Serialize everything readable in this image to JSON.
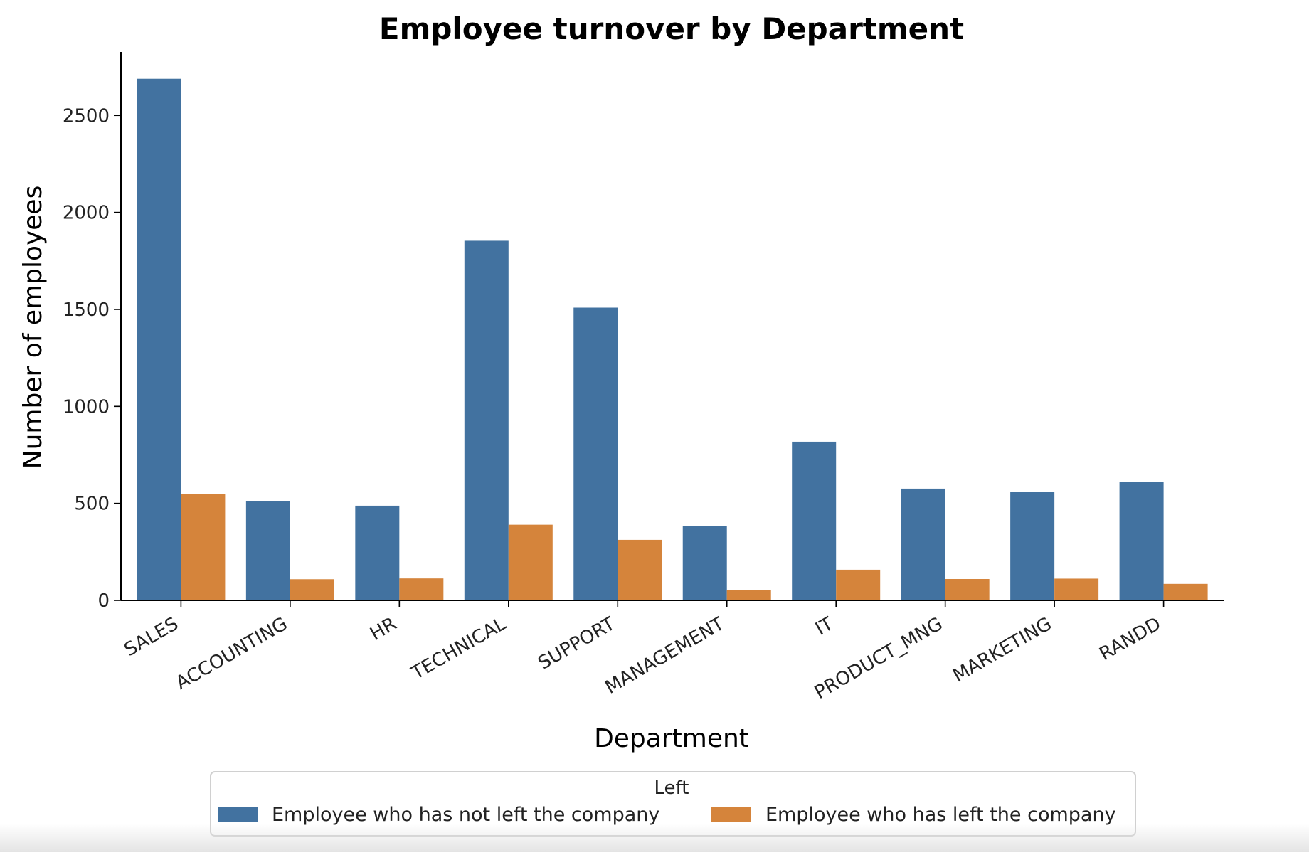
{
  "chart_data": {
    "type": "bar",
    "title": "Employee turnover by Department",
    "xlabel": "Department",
    "ylabel": "Number of employees",
    "ylim": [
      0,
      2820
    ],
    "yticks": [
      0,
      500,
      1000,
      1500,
      2000,
      2500
    ],
    "grid": false,
    "legend": {
      "title": "Left",
      "placement": "bottom-center"
    },
    "categories": [
      "SALES",
      "ACCOUNTING",
      "HR",
      "TECHNICAL",
      "SUPPORT",
      "MANAGEMENT",
      "IT",
      "PRODUCT_MNG",
      "MARKETING",
      "RANDD"
    ],
    "series": [
      {
        "name": "Employee who has not left the company",
        "color": "#4272a0",
        "values": [
          2689,
          512,
          488,
          1854,
          1509,
          384,
          818,
          576,
          561,
          609
        ]
      },
      {
        "name": "Employee who has left the company",
        "color": "#d5843b",
        "values": [
          550,
          109,
          113,
          390,
          312,
          52,
          158,
          110,
          112,
          85
        ]
      }
    ]
  }
}
